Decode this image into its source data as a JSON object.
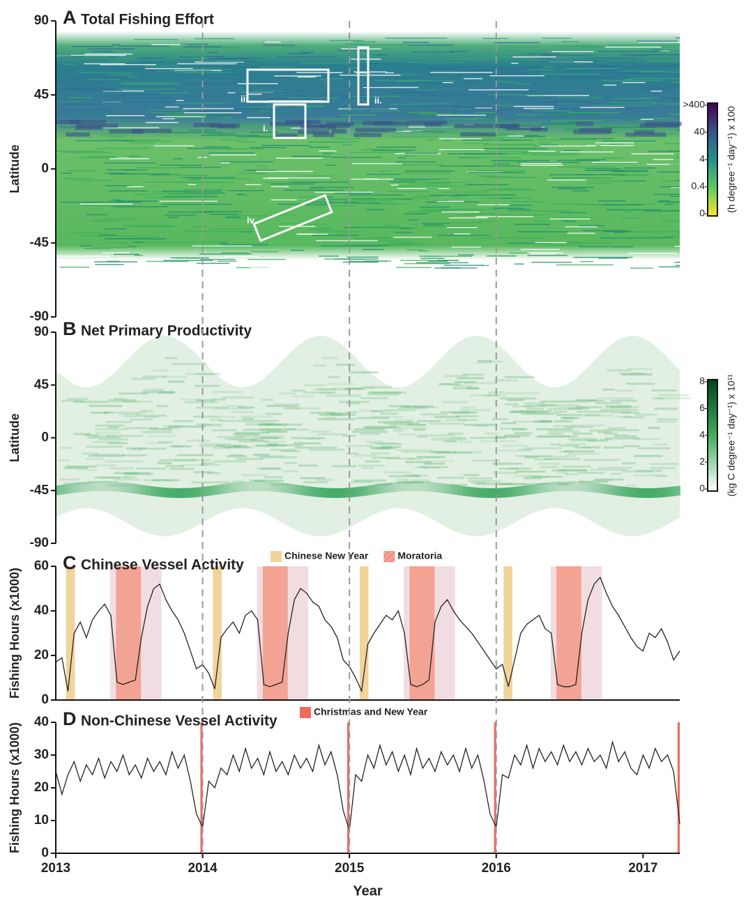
{
  "chart_data": [
    {
      "type": "heatmap",
      "label": "A",
      "title": "Total Fishing Effort",
      "ylabel": "Latitude",
      "ylim": [
        -90,
        90
      ],
      "yticks": [
        -90,
        -45,
        0,
        45,
        90
      ],
      "colorbar": {
        "label": "(h degree⁻¹ day⁻¹) x 100",
        "ticks": [
          0,
          0.4,
          4,
          40,
          {
            "value": 400,
            "label": ">400"
          }
        ]
      },
      "annotations": [
        "i.",
        "ii.",
        "iii.",
        "iv."
      ]
    },
    {
      "type": "heatmap",
      "label": "B",
      "title": "Net Primary Productivity",
      "ylabel": "Latitude",
      "ylim": [
        -90,
        90
      ],
      "yticks": [
        -90,
        -45,
        0,
        45,
        90
      ],
      "colorbar": {
        "label": "(kg C degree⁻¹ day⁻¹) x 10¹¹",
        "ticks": [
          0,
          2,
          4,
          6,
          8
        ]
      }
    },
    {
      "type": "line",
      "label": "C",
      "title": "Chinese Vessel Activity",
      "ylabel": "Fishing Hours (x1000)",
      "xlim": [
        2013,
        2017.25
      ],
      "ylim": [
        0,
        60
      ],
      "yticks": [
        0,
        20,
        40,
        60
      ],
      "bands": [
        {
          "color": "#f1dde1",
          "ranges": [
            [
              2013.37,
              2013.72
            ],
            [
              2014.37,
              2014.72
            ],
            [
              2015.37,
              2015.72
            ],
            [
              2016.37,
              2016.72
            ]
          ]
        },
        {
          "name": "Chinese New Year",
          "color": "#f0d49c",
          "ranges": [
            [
              2013.07,
              2013.13
            ],
            [
              2014.07,
              2014.13
            ],
            [
              2015.07,
              2015.13
            ],
            [
              2016.05,
              2016.11
            ]
          ]
        },
        {
          "name": "Moratoria",
          "color": "#f2a394",
          "ranges": [
            [
              2013.41,
              2013.58
            ],
            [
              2014.41,
              2014.58
            ],
            [
              2015.41,
              2015.58
            ],
            [
              2016.41,
              2016.58
            ]
          ]
        }
      ],
      "x": [
        2013,
        2013.042,
        2013.083,
        2013.125,
        2013.167,
        2013.208,
        2013.25,
        2013.292,
        2013.333,
        2013.375,
        2013.417,
        2013.458,
        2013.5,
        2013.542,
        2013.583,
        2013.625,
        2013.667,
        2013.708,
        2013.75,
        2013.792,
        2013.833,
        2013.875,
        2013.917,
        2013.958,
        2014,
        2014.042,
        2014.083,
        2014.125,
        2014.167,
        2014.208,
        2014.25,
        2014.292,
        2014.333,
        2014.375,
        2014.417,
        2014.458,
        2014.5,
        2014.542,
        2014.583,
        2014.625,
        2014.667,
        2014.708,
        2014.75,
        2014.792,
        2014.833,
        2014.875,
        2014.917,
        2014.958,
        2015,
        2015.042,
        2015.083,
        2015.125,
        2015.167,
        2015.208,
        2015.25,
        2015.292,
        2015.333,
        2015.375,
        2015.417,
        2015.458,
        2015.5,
        2015.542,
        2015.583,
        2015.625,
        2015.667,
        2015.708,
        2015.75,
        2015.792,
        2015.833,
        2015.875,
        2015.917,
        2015.958,
        2016,
        2016.042,
        2016.083,
        2016.125,
        2016.167,
        2016.208,
        2016.25,
        2016.292,
        2016.333,
        2016.375,
        2016.417,
        2016.458,
        2016.5,
        2016.542,
        2016.583,
        2016.625,
        2016.667,
        2016.708,
        2016.75,
        2016.792,
        2016.833,
        2016.875,
        2016.917,
        2016.958,
        2017,
        2017.042,
        2017.083,
        2017.125,
        2017.167,
        2017.208,
        2017.25
      ],
      "series": [
        {
          "color": "#222222",
          "values": [
            17,
            19,
            4,
            30,
            35,
            28,
            36,
            40,
            43,
            38,
            8,
            7,
            8,
            9,
            28,
            42,
            50,
            52,
            45,
            40,
            36,
            30,
            22,
            14,
            16,
            12,
            5,
            28,
            32,
            35,
            30,
            38,
            40,
            36,
            7,
            6,
            7,
            8,
            30,
            45,
            50,
            48,
            44,
            42,
            36,
            33,
            28,
            18,
            15,
            10,
            4,
            25,
            30,
            34,
            38,
            36,
            40,
            30,
            7,
            6,
            7,
            9,
            35,
            42,
            45,
            40,
            36,
            33,
            30,
            26,
            22,
            18,
            14,
            16,
            6,
            18,
            30,
            34,
            36,
            38,
            32,
            30,
            7,
            6,
            6,
            7,
            30,
            45,
            52,
            55,
            48,
            42,
            38,
            33,
            28,
            24,
            22,
            30,
            28,
            32,
            26,
            18,
            22
          ]
        }
      ]
    },
    {
      "type": "line",
      "label": "D",
      "title": "Non-Chinese Vessel Activity",
      "ylabel": "Fishing Hours (x1000)",
      "xlabel": "Year",
      "xlim": [
        2013,
        2017.25
      ],
      "xticks": [
        2013,
        2014,
        2015,
        2016,
        2017
      ],
      "ylim": [
        0,
        40
      ],
      "yticks": [
        0,
        10,
        20,
        30,
        40
      ],
      "bands": [
        {
          "name": "Christmas and New Year",
          "color": "#f06a5a",
          "ranges": [
            [
              2013.985,
              2014
            ],
            [
              2014.985,
              2015
            ],
            [
              2015.985,
              2016
            ],
            [
              2017.235,
              2017.25
            ]
          ]
        }
      ],
      "x": [
        2013,
        2013.042,
        2013.083,
        2013.125,
        2013.167,
        2013.208,
        2013.25,
        2013.292,
        2013.333,
        2013.375,
        2013.417,
        2013.458,
        2013.5,
        2013.542,
        2013.583,
        2013.625,
        2013.667,
        2013.708,
        2013.75,
        2013.792,
        2013.833,
        2013.875,
        2013.917,
        2013.958,
        2014,
        2014.042,
        2014.083,
        2014.125,
        2014.167,
        2014.208,
        2014.25,
        2014.292,
        2014.333,
        2014.375,
        2014.417,
        2014.458,
        2014.5,
        2014.542,
        2014.583,
        2014.625,
        2014.667,
        2014.708,
        2014.75,
        2014.792,
        2014.833,
        2014.875,
        2014.917,
        2014.958,
        2015,
        2015.042,
        2015.083,
        2015.125,
        2015.167,
        2015.208,
        2015.25,
        2015.292,
        2015.333,
        2015.375,
        2015.417,
        2015.458,
        2015.5,
        2015.542,
        2015.583,
        2015.625,
        2015.667,
        2015.708,
        2015.75,
        2015.792,
        2015.833,
        2015.875,
        2015.917,
        2015.958,
        2016,
        2016.042,
        2016.083,
        2016.125,
        2016.167,
        2016.208,
        2016.25,
        2016.292,
        2016.333,
        2016.375,
        2016.417,
        2016.458,
        2016.5,
        2016.542,
        2016.583,
        2016.625,
        2016.667,
        2016.708,
        2016.75,
        2016.792,
        2016.833,
        2016.875,
        2016.917,
        2016.958,
        2017,
        2017.042,
        2017.083,
        2017.125,
        2017.167,
        2017.208,
        2017.25
      ],
      "series": [
        {
          "color": "#222222",
          "values": [
            25,
            18,
            24,
            28,
            22,
            27,
            24,
            29,
            23,
            28,
            25,
            30,
            24,
            27,
            23,
            29,
            25,
            28,
            24,
            31,
            26,
            30,
            22,
            12,
            8,
            22,
            20,
            26,
            24,
            30,
            25,
            32,
            26,
            29,
            24,
            31,
            25,
            28,
            24,
            30,
            26,
            29,
            25,
            33,
            27,
            31,
            24,
            13,
            7,
            24,
            22,
            30,
            26,
            33,
            27,
            31,
            25,
            30,
            24,
            32,
            26,
            29,
            25,
            31,
            27,
            30,
            25,
            32,
            26,
            30,
            22,
            12,
            8,
            24,
            23,
            30,
            27,
            33,
            26,
            32,
            28,
            31,
            27,
            33,
            28,
            31,
            27,
            32,
            28,
            30,
            26,
            34,
            28,
            31,
            26,
            24,
            30,
            26,
            32,
            28,
            30,
            25,
            9
          ]
        }
      ]
    }
  ]
}
